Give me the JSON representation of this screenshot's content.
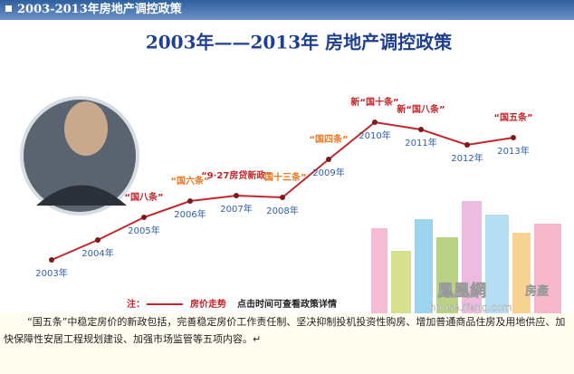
{
  "header": {
    "title": "2003-2013年房地产调控政策"
  },
  "chart_data": {
    "type": "line",
    "title": "2003年——2013年 房地产调控政策",
    "categories": [
      "2003年",
      "2004年",
      "2005年",
      "2006年",
      "2007年",
      "2008年",
      "2009年",
      "2010年",
      "2011年",
      "2012年",
      "2013年"
    ],
    "series": [
      {
        "name": "房价走势",
        "color": "#c0272d",
        "values": [
          13,
          35,
          60,
          78,
          84,
          82,
          124,
          165,
          157,
          140,
          148
        ]
      }
    ],
    "ylim": [
      0,
      180
    ],
    "annotations": [
      {
        "text": "“国八条”",
        "x": "2005年",
        "color": "#c0272d"
      },
      {
        "text": "“国六条”",
        "x": "2006年",
        "color": "#e87722"
      },
      {
        "text": "“9·27房贷新政”",
        "x": "2007年",
        "color": "#c0272d"
      },
      {
        "text": "“国十三条”",
        "x": "2008年",
        "color": "#e87722"
      },
      {
        "text": "“国四条”",
        "x": "2009年",
        "color": "#e87722"
      },
      {
        "text": "新“国十条”",
        "x": "2010年",
        "color": "#c0272d"
      },
      {
        "text": "新“国八条”",
        "x": "2011年",
        "color": "#c0272d"
      },
      {
        "text": "“国五条”",
        "x": "2013年",
        "color": "#c0272d"
      }
    ],
    "legend_prefix": "注：",
    "legend_note": "点击时间可查看政策详情"
  },
  "watermark": {
    "brand": "鳳凰網",
    "tag": "房產",
    "url": "house.ifeng.com"
  },
  "caption": "“国五条”中稳定房价的新政包括，完善稳定房价工作责任制、坚决抑制投机投资性购房、增加普通商品住房及用地供应、加快保障性安居工程规划建设、加强市场监管等五项内容。↵"
}
